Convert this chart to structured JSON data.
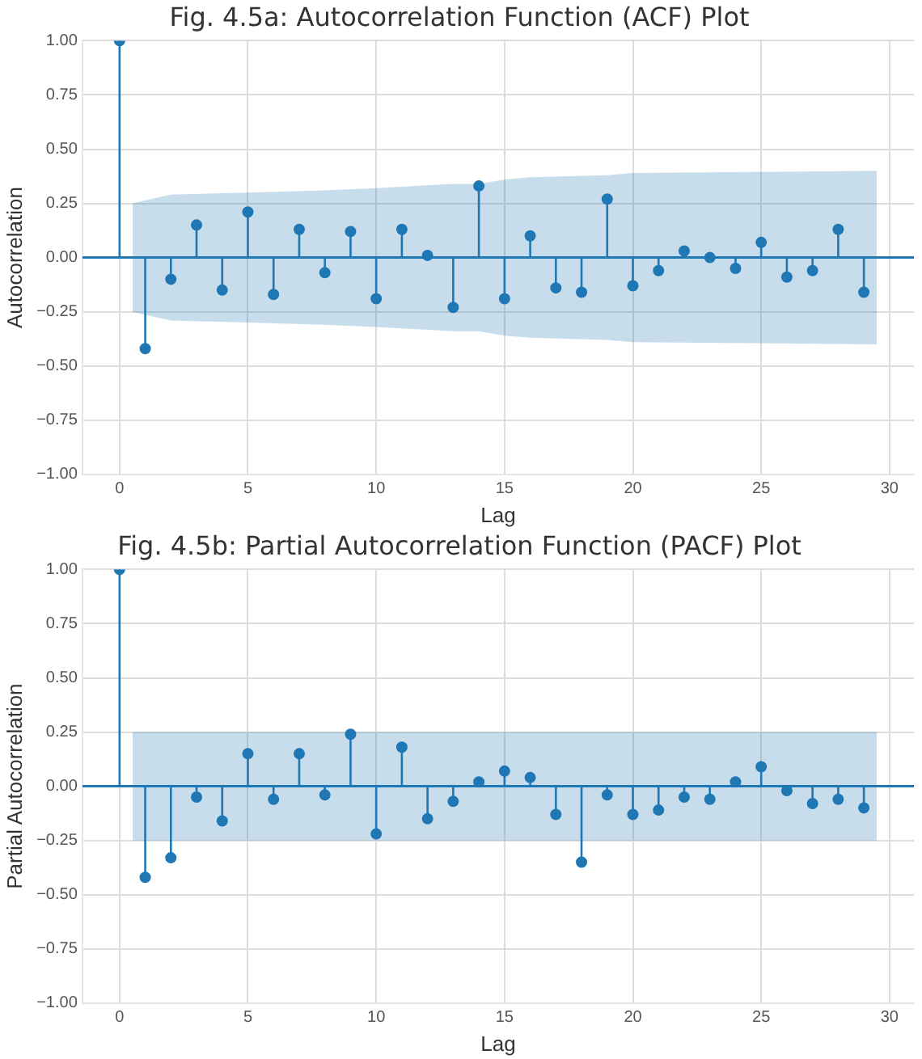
{
  "chart_data": [
    {
      "type": "lollipop",
      "title": "Fig. 4.5a: Autocorrelation Function (ACF) Plot",
      "xlabel": "Lag",
      "ylabel": "Autocorrelation",
      "xlim": [
        -1.45,
        30.95
      ],
      "xticks": [
        0,
        5,
        10,
        15,
        20,
        25,
        30
      ],
      "ylim": [
        -1,
        1
      ],
      "yticks": [
        {
          "value": -1,
          "label": "−1.00"
        },
        {
          "value": -0.75,
          "label": "−0.75"
        },
        {
          "value": -0.5,
          "label": "−0.50"
        },
        {
          "value": -0.25,
          "label": "−0.25"
        },
        {
          "value": 0,
          "label": "0.00"
        },
        {
          "value": 0.25,
          "label": "0.25"
        },
        {
          "value": 0.5,
          "label": "0.50"
        },
        {
          "value": 0.75,
          "label": "0.75"
        },
        {
          "value": 1,
          "label": "1.00"
        }
      ],
      "grid": true,
      "legend": false,
      "marker": "circle",
      "series": [
        {
          "type": "line",
          "marker": "none",
          "color": "#1f77b4",
          "x": [
            -1.45,
            0.5,
            2,
            5,
            8,
            10,
            13,
            14,
            15,
            16,
            19,
            20,
            29.5,
            30.95
          ],
          "values": [
            0,
            0,
            0,
            0,
            0,
            0,
            0,
            0,
            0,
            0,
            0,
            0,
            0,
            0
          ],
          "upper": [
            null,
            0.25,
            0.29,
            0.3,
            0.31,
            0.32,
            0.34,
            0.34,
            0.36,
            0.37,
            0.38,
            0.39,
            0.4,
            null
          ],
          "lower": [
            null,
            -0.25,
            -0.29,
            -0.3,
            -0.31,
            -0.32,
            -0.34,
            -0.34,
            -0.36,
            -0.37,
            -0.38,
            -0.39,
            -0.4,
            null
          ]
        },
        {
          "type": "lollipop",
          "color": "#1f77b4",
          "x": [
            0,
            1,
            2,
            3,
            4,
            5,
            6,
            7,
            8,
            9,
            10,
            11,
            12,
            13,
            14,
            15,
            16,
            17,
            18,
            19,
            20,
            21,
            22,
            23,
            24,
            25,
            26,
            27,
            28,
            29
          ],
          "values": [
            1.0,
            -0.42,
            -0.1,
            0.15,
            -0.15,
            0.21,
            -0.17,
            0.13,
            -0.07,
            0.12,
            -0.19,
            0.13,
            0.01,
            -0.23,
            0.33,
            -0.19,
            0.1,
            -0.14,
            -0.16,
            0.27,
            -0.13,
            -0.06,
            0.03,
            0.0,
            -0.05,
            0.07,
            -0.09,
            -0.06,
            0.13,
            -0.16
          ]
        }
      ]
    },
    {
      "type": "lollipop",
      "title": "Fig. 4.5b: Partial Autocorrelation Function (PACF) Plot",
      "xlabel": "Lag",
      "ylabel": "Partial Autocorrelation",
      "xlim": [
        -1.45,
        30.95
      ],
      "xticks": [
        0,
        5,
        10,
        15,
        20,
        25,
        30
      ],
      "ylim": [
        -1,
        1
      ],
      "yticks": [
        {
          "value": -1,
          "label": "−1.00"
        },
        {
          "value": -0.75,
          "label": "−0.75"
        },
        {
          "value": -0.5,
          "label": "−0.50"
        },
        {
          "value": -0.25,
          "label": "−0.25"
        },
        {
          "value": 0,
          "label": "0.00"
        },
        {
          "value": 0.25,
          "label": "0.25"
        },
        {
          "value": 0.5,
          "label": "0.50"
        },
        {
          "value": 0.75,
          "label": "0.75"
        },
        {
          "value": 1,
          "label": "1.00"
        }
      ],
      "grid": true,
      "legend": false,
      "marker": "circle",
      "series": [
        {
          "type": "line",
          "marker": "none",
          "color": "#1f77b4",
          "x": [
            -1.45,
            0.5,
            29.5,
            30.95
          ],
          "values": [
            0,
            0,
            0,
            0
          ],
          "upper": [
            null,
            0.25,
            0.25,
            null
          ],
          "lower": [
            null,
            -0.25,
            -0.25,
            null
          ]
        },
        {
          "type": "lollipop",
          "color": "#1f77b4",
          "x": [
            0,
            1,
            2,
            3,
            4,
            5,
            6,
            7,
            8,
            9,
            10,
            11,
            12,
            13,
            14,
            15,
            16,
            17,
            18,
            19,
            20,
            21,
            22,
            23,
            24,
            25,
            26,
            27,
            28,
            29
          ],
          "values": [
            1.0,
            -0.42,
            -0.33,
            -0.05,
            -0.16,
            0.15,
            -0.06,
            0.15,
            -0.04,
            0.24,
            -0.22,
            0.18,
            -0.15,
            -0.07,
            0.02,
            0.07,
            0.04,
            -0.13,
            -0.35,
            -0.04,
            -0.13,
            -0.11,
            -0.05,
            -0.06,
            0.02,
            0.09,
            -0.02,
            -0.08,
            -0.06,
            -0.1
          ]
        }
      ]
    }
  ]
}
